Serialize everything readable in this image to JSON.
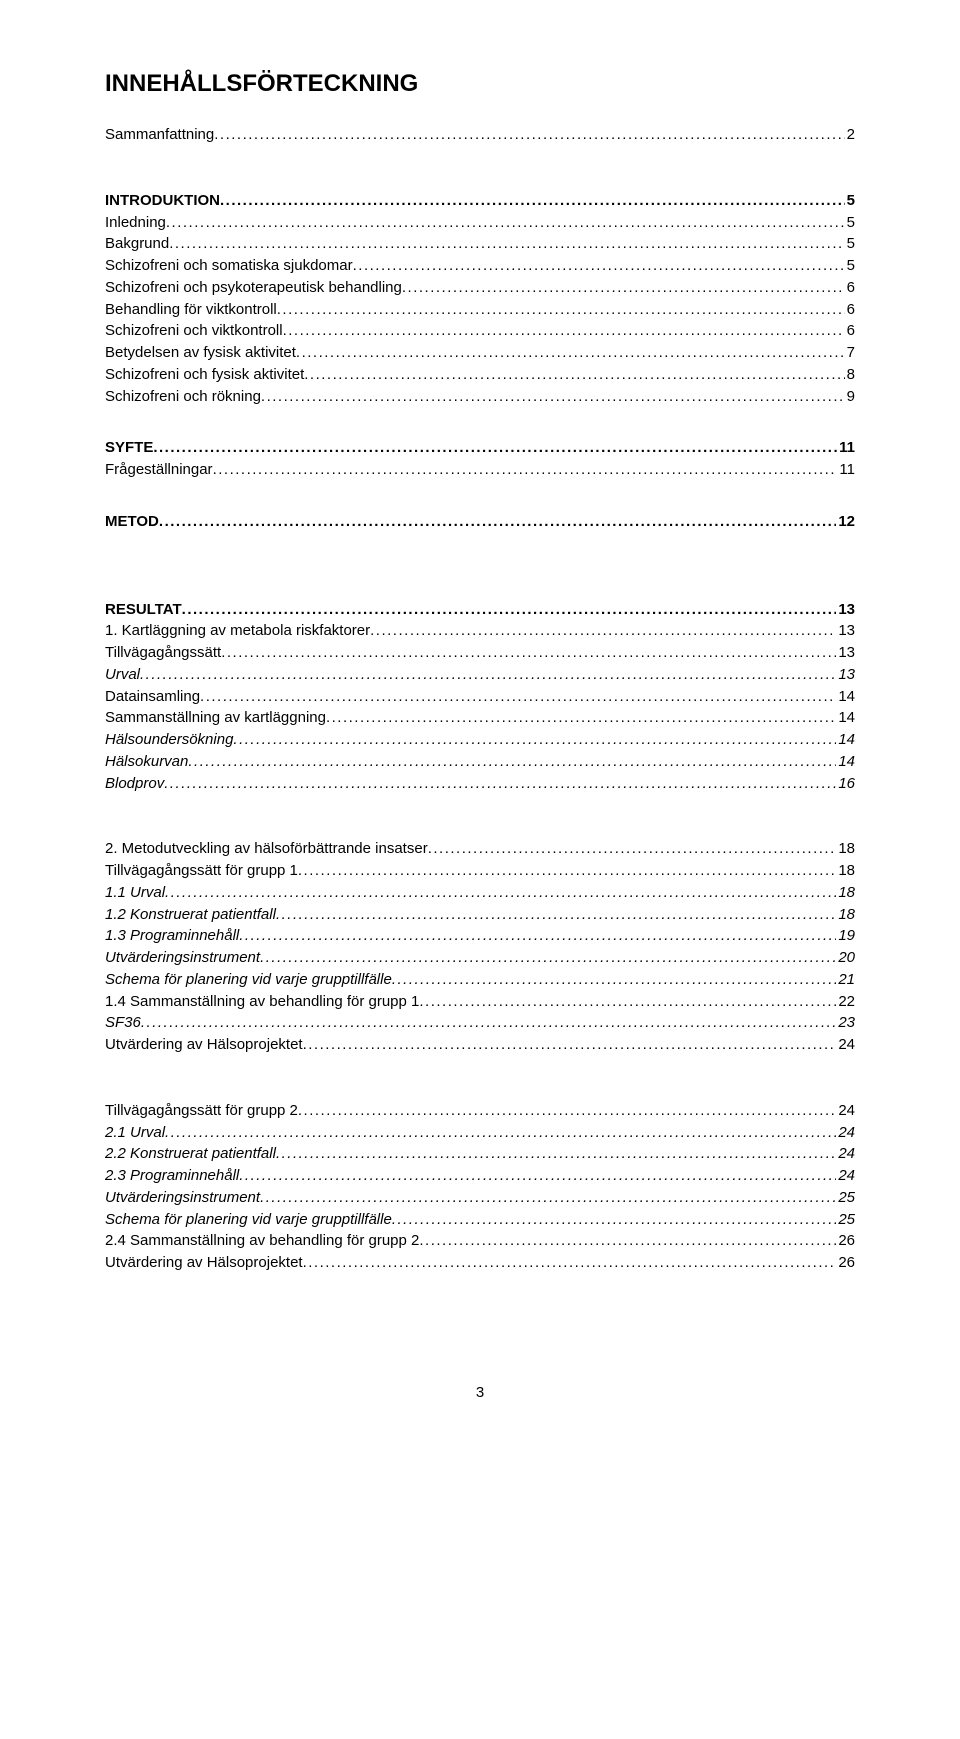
{
  "title": "INNEHÅLLSFÖRTECKNING",
  "page_number": "3",
  "colors": {
    "text": "#000000",
    "background": "#ffffff"
  },
  "typography": {
    "font_family": "Arial",
    "title_pt": 18,
    "body_pt": 11,
    "bold_levels": [
      0
    ],
    "italic_levels": [
      3
    ]
  },
  "entries": [
    {
      "label": "Sammanfattning",
      "page": "2",
      "level": 1,
      "gap_after": "lg"
    },
    {
      "label": "INTRODUKTION",
      "page": "5",
      "level": 0
    },
    {
      "label": "Inledning",
      "page": "5",
      "level": 1
    },
    {
      "label": "Bakgrund",
      "page": "5",
      "level": 1
    },
    {
      "label": "Schizofreni och somatiska sjukdomar",
      "page": "5",
      "level": 2
    },
    {
      "label": "Schizofreni och psykoterapeutisk behandling",
      "page": "6",
      "level": 2
    },
    {
      "label": "Behandling för viktkontroll",
      "page": "6",
      "level": 2
    },
    {
      "label": "Schizofreni och viktkontroll",
      "page": "6",
      "level": 2
    },
    {
      "label": "Betydelsen av fysisk aktivitet",
      "page": "7",
      "level": 2
    },
    {
      "label": "Schizofreni och fysisk aktivitet",
      "page": "8",
      "level": 2
    },
    {
      "label": "Schizofreni och rökning",
      "page": "9",
      "level": 2,
      "gap_after": "md"
    },
    {
      "label": "SYFTE",
      "page": "11",
      "level": 0
    },
    {
      "label": "Frågeställningar",
      "page": "11",
      "level": 1,
      "gap_after": "md"
    },
    {
      "label": "METOD",
      "page": "12",
      "level": 0,
      "gap_after": "xl"
    },
    {
      "label": "RESULTAT",
      "page": "13",
      "level": 0
    },
    {
      "label": "1. Kartläggning av metabola riskfaktorer",
      "page": "13",
      "level": 1
    },
    {
      "label": "Tillvägagångssätt",
      "page": "13",
      "level": 2
    },
    {
      "label": "Urval",
      "page": "13",
      "level": 3
    },
    {
      "label": "Datainsamling",
      "page": "14",
      "level": 2
    },
    {
      "label": "Sammanställning av kartläggning",
      "page": "14",
      "level": 2
    },
    {
      "label": "Hälsoundersökning",
      "page": "14",
      "level": 3
    },
    {
      "label": "Hälsokurvan",
      "page": "14",
      "level": 3
    },
    {
      "label": "Blodprov",
      "page": "16",
      "level": 3,
      "gap_after": "lg"
    },
    {
      "label": "2. Metodutveckling av hälsoförbättrande insatser",
      "page": "18",
      "level": 1
    },
    {
      "label": "Tillvägagångssätt för grupp 1",
      "page": "18",
      "level": 2
    },
    {
      "label": "1.1 Urval",
      "page": "18",
      "level": 3
    },
    {
      "label": "1.2 Konstruerat patientfall",
      "page": "18",
      "level": 3
    },
    {
      "label": "1.3 Programinnehåll",
      "page": "19",
      "level": 3
    },
    {
      "label": "Utvärderingsinstrument",
      "page": "20",
      "level": 3
    },
    {
      "label": "Schema för planering vid varje grupptillfälle",
      "page": "21",
      "level": 3
    },
    {
      "label": "1.4 Sammanställning av behandling för grupp 1",
      "page": "22",
      "level": 2
    },
    {
      "label": "SF36",
      "page": "23",
      "level": 3
    },
    {
      "label": "Utvärdering av Hälsoprojektet",
      "page": "24",
      "level": 2,
      "gap_after": "lg"
    },
    {
      "label": "Tillvägagångssätt för grupp 2",
      "page": "24",
      "level": 2
    },
    {
      "label": "2.1 Urval",
      "page": "24",
      "level": 3
    },
    {
      "label": "2.2 Konstruerat patientfall",
      "page": "24",
      "level": 3
    },
    {
      "label": "2.3 Programinnehåll",
      "page": "24",
      "level": 3
    },
    {
      "label": "Utvärderingsinstrument",
      "page": "25",
      "level": 3
    },
    {
      "label": "Schema för planering vid varje grupptillfälle",
      "page": "25",
      "level": 3
    },
    {
      "label": "2.4 Sammanställning av behandling för grupp 2",
      "page": "26",
      "level": 2
    },
    {
      "label": "Utvärdering av Hälsoprojektet",
      "page": "26",
      "level": 2
    }
  ]
}
